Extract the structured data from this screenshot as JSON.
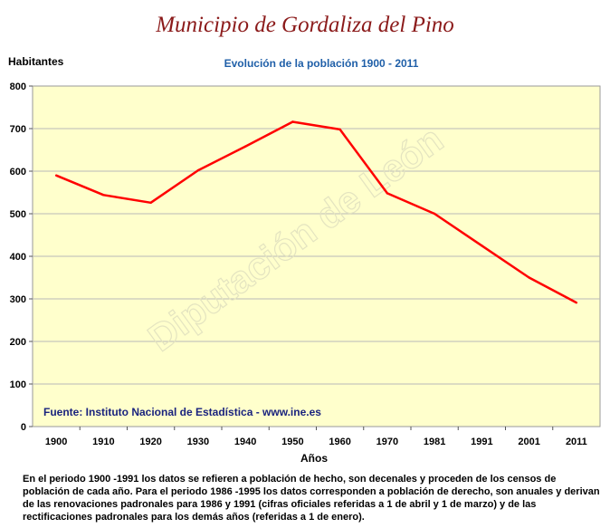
{
  "header": {
    "title": "Municipio de Gordaliza del Pino"
  },
  "chart_data": {
    "type": "line",
    "title": "Evolución de la población 1900 - 2011",
    "ylabel": "Habitantes",
    "xlabel": "Años",
    "categories": [
      "1900",
      "1910",
      "1920",
      "1930",
      "1940",
      "1950",
      "1960",
      "1970",
      "1981",
      "1991",
      "2001",
      "2011"
    ],
    "series": [
      {
        "values": [
          590,
          544,
          526,
          602,
          658,
          716,
          698,
          548,
          500,
          425,
          350,
          291
        ]
      }
    ],
    "ylim": [
      0,
      800
    ],
    "yticks": [
      0,
      100,
      200,
      300,
      400,
      500,
      600,
      700,
      800
    ],
    "grid": true,
    "line_color": "#ff0000",
    "plot_background": "#ffffcc",
    "source": "Fuente: Instituto Nacional de Estadística - www.ine.es",
    "watermark": "Diputación de León"
  },
  "footnote": "En el periodo 1900 -1991 los datos se refieren a población de hecho, son decenales y proceden de los censos de población de cada año. Para el periodo 1986 -1995 los datos corresponden a población de derecho, son anuales y derivan de las renovaciones padronales para 1986 y 1991 (cifras oficiales referidas a 1 de abril y 1 de marzo) y de las rectificaciones padronales para los demás años (referidas a 1 de enero)."
}
